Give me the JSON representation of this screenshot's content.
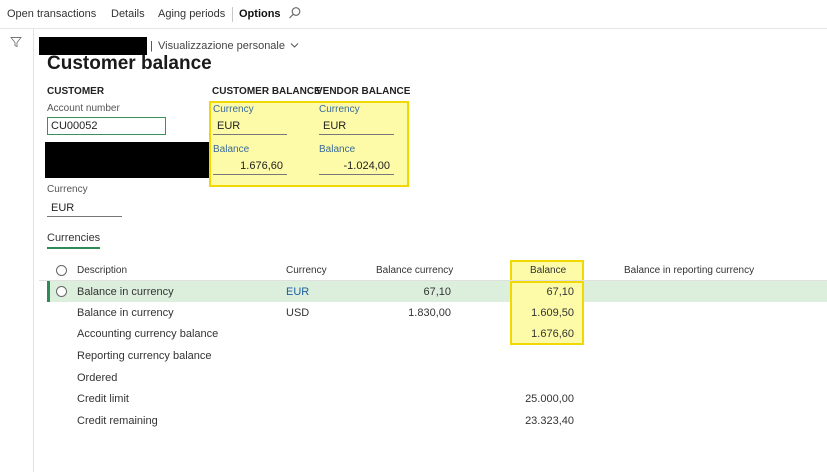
{
  "action_pane": {
    "items": [
      "Open transactions",
      "Details",
      "Aging periods",
      "Options"
    ],
    "search_icon": "search-icon"
  },
  "header": {
    "view_label": "Visualizzazione personale",
    "title": "Customer balance"
  },
  "customer": {
    "heading": "CUSTOMER",
    "account_label": "Account number",
    "account_value": "CU00052",
    "currency_label": "Currency",
    "currency_value": "EUR"
  },
  "customer_balance": {
    "heading": "CUSTOMER BALANCE",
    "currency_label": "Currency",
    "currency_value": "EUR",
    "balance_label": "Balance",
    "balance_value": "1.676,60"
  },
  "vendor_balance": {
    "heading": "VENDOR BALANCE",
    "currency_label": "Currency",
    "currency_value": "EUR",
    "balance_label": "Balance",
    "balance_value": "-1.024,00"
  },
  "tabs": {
    "currencies": "Currencies"
  },
  "grid": {
    "columns": [
      "Description",
      "Currency",
      "Balance currency",
      "Balance",
      "Balance in reporting currency"
    ],
    "rows": [
      {
        "description": "Balance in currency",
        "currency": "EUR",
        "balance_currency": "67,10",
        "balance": "67,10",
        "reporting": ""
      },
      {
        "description": "Balance in currency",
        "currency": "USD",
        "balance_currency": "1.830,00",
        "balance": "1.609,50",
        "reporting": ""
      },
      {
        "description": "Accounting currency balance",
        "currency": "",
        "balance_currency": "",
        "balance": "1.676,60",
        "reporting": ""
      },
      {
        "description": "Reporting currency balance",
        "currency": "",
        "balance_currency": "",
        "balance": "",
        "reporting": ""
      },
      {
        "description": "Ordered",
        "currency": "",
        "balance_currency": "",
        "balance": "",
        "reporting": ""
      },
      {
        "description": "Credit limit",
        "currency": "",
        "balance_currency": "",
        "balance": "25.000,00",
        "reporting": ""
      },
      {
        "description": "Credit remaining",
        "currency": "",
        "balance_currency": "",
        "balance": "23.323,40",
        "reporting": ""
      }
    ]
  },
  "colors": {
    "highlight_yellow": "#fdfba8",
    "highlight_border": "#f0d800",
    "selected_row": "#dcefdc",
    "link_blue": "#1f5f9e",
    "accent_green": "#2e8b57"
  }
}
